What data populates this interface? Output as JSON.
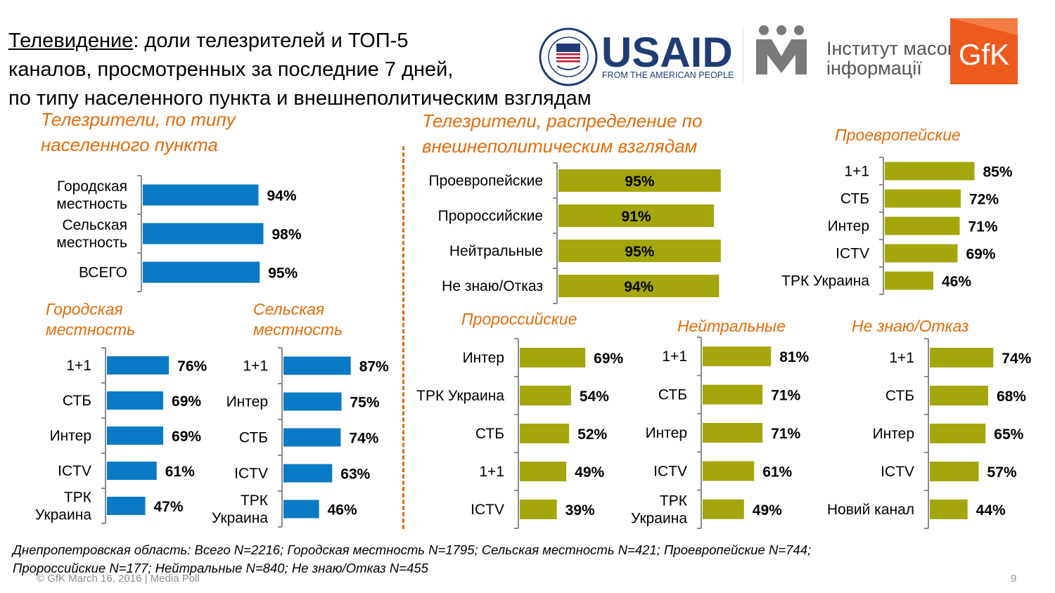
{
  "title": {
    "underlined": "Телевидение",
    "line1_rest": ": доли телезрителей и ТОП-5",
    "line2": "каналов, просмотренных за последние 7 дней,",
    "line3": "по типу населенного пункта и внешнеполитическим взглядам"
  },
  "logos": {
    "usaid_text": "USAID",
    "usaid_tagline": "FROM THE AMERICAN PEOPLE",
    "usaid_seal_text": "UNITED STATES AGENCY · INTERNATIONAL DEVELOPMENT",
    "imi_line1": "Інститут масової",
    "imi_line2": "інформації",
    "gfk_text": "GfK"
  },
  "sections": {
    "settlement_line1": "Телезрители, по типу",
    "settlement_line2": "населенного пункта",
    "foreign_line1": "Телезрители, распределение по",
    "foreign_line2": "внешнеполитическим взглядам",
    "urban_line1": "Городская",
    "urban_line2": "местность",
    "rural_line1": "Сельская",
    "rural_line2": "местность",
    "pro_eu": "Проевропейские",
    "pro_ru": "Пророссийские",
    "neutral": "Нейтральные",
    "dont_know": "Не знаю/Отказ"
  },
  "colors": {
    "blue": "#0a7ac4",
    "olive": "#a3a70c",
    "accent": "#e36c0a"
  },
  "chart_data": [
    {
      "id": "settlement",
      "type": "bar",
      "orientation": "horizontal",
      "color": "#0a7ac4",
      "categories": [
        [
          "Городская",
          "местность"
        ],
        [
          "Сельская",
          "местность"
        ],
        [
          "ВСЕГО"
        ]
      ],
      "values": [
        94,
        98,
        95
      ],
      "labels": [
        "94%",
        "98%",
        "95%"
      ],
      "unit": "%"
    },
    {
      "id": "foreign_policy",
      "type": "bar",
      "orientation": "horizontal",
      "color": "#a3a70c",
      "categories": [
        [
          "Проевропейские"
        ],
        [
          "Пророссийские"
        ],
        [
          "Нейтральные"
        ],
        [
          "Не знаю/Отказ"
        ]
      ],
      "values": [
        95,
        91,
        95,
        94
      ],
      "labels": [
        "95%",
        "91%",
        "95%",
        "94%"
      ],
      "unit": "%"
    },
    {
      "id": "pro_eu",
      "type": "bar",
      "orientation": "horizontal",
      "color": "#a3a70c",
      "categories": [
        [
          "1+1"
        ],
        [
          "СТБ"
        ],
        [
          "Интер"
        ],
        [
          "ICTV"
        ],
        [
          "ТРК Украина"
        ]
      ],
      "values": [
        85,
        72,
        71,
        69,
        46
      ],
      "labels": [
        "85%",
        "72%",
        "71%",
        "69%",
        "46%"
      ],
      "unit": "%"
    },
    {
      "id": "urban",
      "type": "bar",
      "orientation": "horizontal",
      "color": "#0a7ac4",
      "categories": [
        [
          "1+1"
        ],
        [
          "СТБ"
        ],
        [
          "Интер"
        ],
        [
          "ICTV"
        ],
        [
          "ТРК",
          "Украина"
        ]
      ],
      "values": [
        76,
        69,
        69,
        61,
        47
      ],
      "labels": [
        "76%",
        "69%",
        "69%",
        "61%",
        "47%"
      ],
      "unit": "%"
    },
    {
      "id": "rural",
      "type": "bar",
      "orientation": "horizontal",
      "color": "#0a7ac4",
      "categories": [
        [
          "1+1"
        ],
        [
          "Интер"
        ],
        [
          "СТБ"
        ],
        [
          "ICTV"
        ],
        [
          "ТРК",
          "Украина"
        ]
      ],
      "values": [
        87,
        75,
        74,
        63,
        46
      ],
      "labels": [
        "87%",
        "75%",
        "74%",
        "63%",
        "46%"
      ],
      "unit": "%"
    },
    {
      "id": "pro_ru",
      "type": "bar",
      "orientation": "horizontal",
      "color": "#a3a70c",
      "categories": [
        [
          "Интер"
        ],
        [
          "ТРК Украина"
        ],
        [
          "СТБ"
        ],
        [
          "1+1"
        ],
        [
          "ICTV"
        ]
      ],
      "values": [
        69,
        54,
        52,
        49,
        39
      ],
      "labels": [
        "69%",
        "54%",
        "52%",
        "49%",
        "39%"
      ],
      "unit": "%"
    },
    {
      "id": "neutral",
      "type": "bar",
      "orientation": "horizontal",
      "color": "#a3a70c",
      "categories": [
        [
          "1+1"
        ],
        [
          "СТБ"
        ],
        [
          "Интер"
        ],
        [
          "ICTV"
        ],
        [
          "ТРК",
          "Украина"
        ]
      ],
      "values": [
        81,
        71,
        71,
        61,
        49
      ],
      "labels": [
        "81%",
        "71%",
        "71%",
        "61%",
        "49%"
      ],
      "unit": "%"
    },
    {
      "id": "dont_know",
      "type": "bar",
      "orientation": "horizontal",
      "color": "#a3a70c",
      "categories": [
        [
          "1+1"
        ],
        [
          "СТБ"
        ],
        [
          "Интер"
        ],
        [
          "ICTV"
        ],
        [
          "Новий канал"
        ]
      ],
      "values": [
        74,
        68,
        65,
        57,
        44
      ],
      "labels": [
        "74%",
        "68%",
        "65%",
        "57%",
        "44%"
      ],
      "unit": "%"
    }
  ],
  "footnote": {
    "line1": "Днепропетровская область: Всего N=2216; Городская местность N=1795; Сельская местность N=421; Проевропейские N=744;",
    "line2": "Пророссийские N=177; Нейтральные N=840; Не знаю/Отказ N=455"
  },
  "footer": "© GfK March 16, 2016 | Media Poll",
  "page_number": "9"
}
